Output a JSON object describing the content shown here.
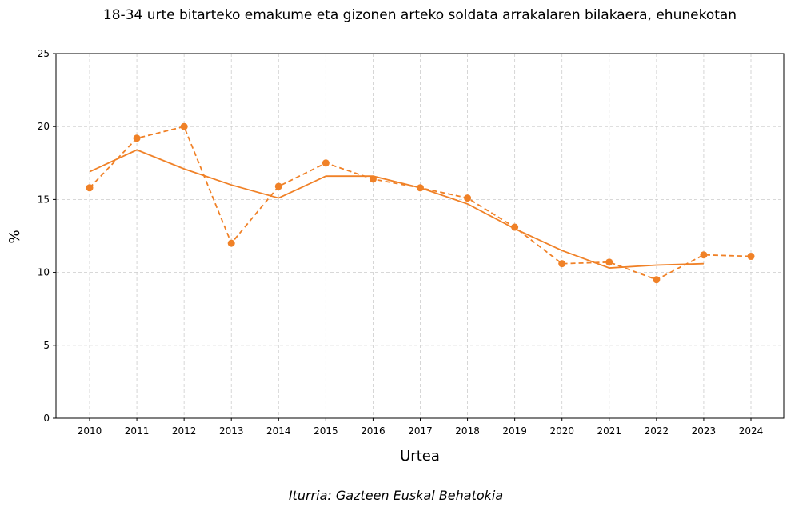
{
  "chart_data": {
    "type": "line",
    "title": "18-34 urte bitarteko emakume eta gizonen arteko soldata arrakalaren bilakaera, ehunekotan",
    "xlabel": "Urtea",
    "ylabel": "%",
    "source": "Iturria: Gazteen Euskal Behatokia",
    "categories": [
      "2010",
      "2011",
      "2012",
      "2013",
      "2014",
      "2015",
      "2016",
      "2017",
      "2018",
      "2019",
      "2020",
      "2021",
      "2022",
      "2023",
      "2024"
    ],
    "ylim": [
      0,
      25
    ],
    "yticks": [
      0,
      5,
      10,
      15,
      20,
      25
    ],
    "grid": true,
    "color": "#f08127",
    "series": [
      {
        "style": "dashed-markers",
        "values": [
          15.8,
          19.2,
          20.0,
          12.0,
          15.9,
          17.5,
          16.4,
          15.8,
          15.1,
          13.1,
          10.6,
          10.7,
          9.5,
          11.2,
          11.1
        ]
      },
      {
        "style": "solid",
        "values": [
          16.9,
          18.4,
          17.1,
          16.0,
          15.1,
          16.6,
          16.6,
          15.8,
          14.7,
          13.0,
          11.5,
          10.3,
          10.5,
          10.6,
          null
        ]
      }
    ]
  }
}
